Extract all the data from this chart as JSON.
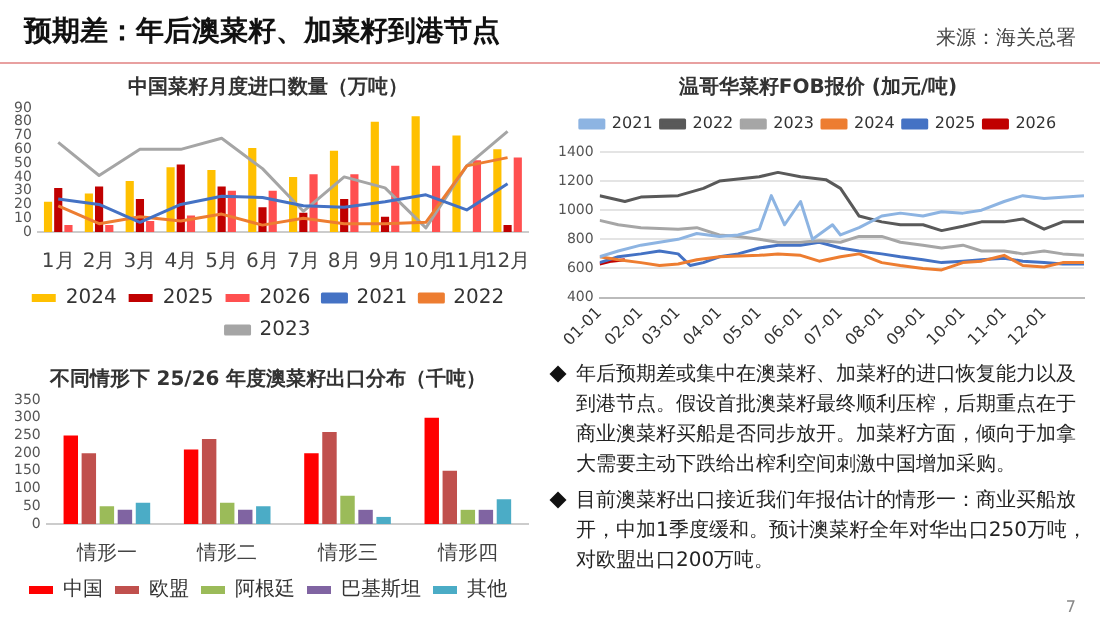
{
  "chart_data": [
    {
      "type": "other",
      "title": "预期差：年后澳菜籽、加菜籽到港节点",
      "annotations": [
        "来源：海关总署"
      ]
    },
    {
      "type": "bar",
      "title": "中国菜籽月度进口数量（万吨）",
      "categories": [
        "1月",
        "2月",
        "3月",
        "4月",
        "5月",
        "6月",
        "7月",
        "8月",
        "9月",
        "10月",
        "11月",
        "12月"
      ],
      "ylim": [
        0,
        90
      ],
      "yticks": [
        0,
        10,
        20,
        30,
        40,
        50,
        60,
        70,
        80,
        90
      ],
      "legend": "bottom",
      "series": [
        {
          "name": "2024",
          "color": "#ffc000",
          "values": [
            22,
            28,
            37,
            47,
            45,
            61,
            40,
            59,
            80,
            84,
            70,
            60
          ]
        },
        {
          "name": "2025",
          "color": "#c00000",
          "values": [
            32,
            33,
            24,
            49,
            33,
            18,
            14,
            24,
            11,
            null,
            null,
            5
          ]
        },
        {
          "name": "2026",
          "color": "#ff5050",
          "values": [
            5,
            5,
            8,
            12,
            30,
            30,
            42,
            42,
            48,
            48,
            52,
            54
          ]
        },
        {
          "name": "2021",
          "type": "line",
          "color": "#4472c4",
          "values": [
            24,
            20,
            7,
            20,
            26,
            25,
            19,
            18,
            22,
            27,
            16,
            35
          ]
        },
        {
          "name": "2022",
          "type": "line",
          "color": "#ed7d31",
          "values": [
            19,
            6,
            11,
            8,
            13,
            5,
            10,
            6,
            6,
            7,
            48,
            54
          ]
        },
        {
          "name": "2023",
          "type": "line",
          "color": "#a5a5a5",
          "values": [
            65,
            41,
            60,
            60,
            68,
            46,
            15,
            40,
            32,
            3,
            48,
            73
          ]
        }
      ]
    },
    {
      "type": "line",
      "title": "温哥华菜籽FOB报价 (加元/吨)",
      "xlim": [
        "--01-01",
        "--12-31"
      ],
      "xticks": [
        {
          "value": "--01-01",
          "label": "01-01"
        },
        {
          "value": "--02-01",
          "label": "02-01"
        },
        {
          "value": "--03-01",
          "label": "03-01"
        },
        {
          "value": "--04-01",
          "label": "04-01"
        },
        {
          "value": "--05-01",
          "label": "05-01"
        },
        {
          "value": "--06-01",
          "label": "06-01"
        },
        {
          "value": "--07-01",
          "label": "07-01"
        },
        {
          "value": "--08-01",
          "label": "08-01"
        },
        {
          "value": "--09-01",
          "label": "09-01"
        },
        {
          "value": "--10-01",
          "label": "10-01"
        },
        {
          "value": "--11-01",
          "label": "11-01"
        },
        {
          "value": "--12-01",
          "label": "12-01"
        }
      ],
      "ylim": [
        400,
        1400
      ],
      "yticks": [
        400,
        600,
        800,
        1000,
        1200,
        1400
      ],
      "grid": "y",
      "legend": "top",
      "series": [
        {
          "name": "2021",
          "color": "#8db4e2",
          "x": [
            "--01-01",
            "--01-15",
            "--02-01",
            "--03-01",
            "--03-15",
            "--04-01",
            "--04-15",
            "--05-01",
            "--05-10",
            "--05-20",
            "--06-01",
            "--06-10",
            "--06-25",
            "--07-01",
            "--07-15",
            "--08-01",
            "--08-15",
            "--09-01",
            "--09-15",
            "--10-01",
            "--10-15",
            "--11-01",
            "--11-15",
            "--12-01",
            "--12-31"
          ],
          "values": [
            680,
            720,
            760,
            800,
            840,
            820,
            830,
            870,
            1100,
            900,
            1060,
            800,
            900,
            830,
            880,
            960,
            980,
            960,
            990,
            980,
            1000,
            1060,
            1100,
            1080,
            1100
          ]
        },
        {
          "name": "2022",
          "color": "#595959",
          "x": [
            "--01-01",
            "--01-20",
            "--02-01",
            "--03-01",
            "--03-20",
            "--04-01",
            "--05-01",
            "--05-15",
            "--06-01",
            "--06-20",
            "--07-01",
            "--07-15",
            "--08-01",
            "--08-15",
            "--09-01",
            "--09-15",
            "--10-01",
            "--10-15",
            "--11-01",
            "--11-15",
            "--12-01",
            "--12-15",
            "--12-31"
          ],
          "values": [
            1100,
            1060,
            1090,
            1100,
            1150,
            1200,
            1230,
            1260,
            1230,
            1210,
            1150,
            960,
            920,
            900,
            900,
            860,
            890,
            920,
            920,
            940,
            870,
            920,
            920
          ]
        },
        {
          "name": "2023",
          "color": "#a6a6a6",
          "x": [
            "--01-01",
            "--01-15",
            "--02-01",
            "--03-01",
            "--03-15",
            "--04-01",
            "--04-15",
            "--05-01",
            "--05-15",
            "--06-01",
            "--06-15",
            "--07-01",
            "--07-15",
            "--08-01",
            "--08-15",
            "--09-01",
            "--09-15",
            "--10-01",
            "--10-15",
            "--11-01",
            "--11-15",
            "--12-01",
            "--12-15",
            "--12-31"
          ],
          "values": [
            930,
            900,
            880,
            870,
            880,
            830,
            820,
            800,
            780,
            780,
            790,
            780,
            820,
            820,
            780,
            760,
            740,
            760,
            720,
            720,
            700,
            720,
            700,
            690
          ]
        },
        {
          "name": "2024",
          "color": "#ed7d31",
          "x": [
            "--01-01",
            "--01-15",
            "--02-01",
            "--02-15",
            "--03-01",
            "--03-15",
            "--04-01",
            "--05-01",
            "--05-15",
            "--06-01",
            "--06-15",
            "--07-01",
            "--07-15",
            "--08-01",
            "--08-15",
            "--09-01",
            "--09-15",
            "--10-01",
            "--10-15",
            "--11-01",
            "--11-15",
            "--12-01",
            "--12-15",
            "--12-31"
          ],
          "values": [
            680,
            660,
            640,
            620,
            630,
            660,
            680,
            690,
            700,
            690,
            650,
            680,
            700,
            640,
            620,
            600,
            590,
            640,
            650,
            690,
            620,
            610,
            640,
            640
          ]
        },
        {
          "name": "2025",
          "color": "#4472c4",
          "x": [
            "--01-01",
            "--01-15",
            "--02-01",
            "--02-15",
            "--03-01",
            "--03-10",
            "--03-20",
            "--04-01",
            "--04-15",
            "--05-01",
            "--05-15",
            "--06-01",
            "--06-15",
            "--07-01",
            "--07-15",
            "--08-01",
            "--08-15",
            "--09-01",
            "--09-15",
            "--10-01",
            "--10-15",
            "--11-01",
            "--11-15",
            "--12-01",
            "--12-15",
            "--12-31"
          ],
          "values": [
            640,
            680,
            700,
            720,
            700,
            620,
            640,
            680,
            700,
            740,
            760,
            760,
            780,
            740,
            720,
            700,
            680,
            660,
            640,
            650,
            660,
            670,
            650,
            640,
            630,
            630
          ]
        },
        {
          "name": "2026",
          "color": "#c00000",
          "x": [
            "--01-01",
            "--01-10",
            "--01-20"
          ],
          "values": [
            630,
            650,
            660
          ]
        }
      ]
    },
    {
      "type": "bar",
      "title": "不同情形下 25/26 年度澳菜籽出口分布（千吨）",
      "categories": [
        "情形一",
        "情形二",
        "情形三",
        "情形四"
      ],
      "ylim": [
        0,
        350
      ],
      "yticks": [
        0,
        50,
        100,
        150,
        200,
        250,
        300,
        350
      ],
      "legend": "bottom",
      "series": [
        {
          "name": "中国",
          "color": "#ff0000",
          "values": [
            250,
            210,
            200,
            300
          ]
        },
        {
          "name": "欧盟",
          "color": "#c0504d",
          "values": [
            200,
            240,
            260,
            150
          ]
        },
        {
          "name": "阿根廷",
          "color": "#9bbb59",
          "values": [
            50,
            60,
            80,
            40
          ]
        },
        {
          "name": "巴基斯坦",
          "color": "#8064a2",
          "values": [
            40,
            40,
            40,
            40
          ]
        },
        {
          "name": "其他",
          "color": "#4bacc6",
          "values": [
            60,
            50,
            20,
            70
          ]
        }
      ]
    },
    {
      "type": "other",
      "annotations": [
        "年后预期差或集中在澳菜籽、加菜籽的进口恢复能力以及到港节点。假设首批澳菜籽最终顺利压榨，后期重点在于商业澳菜籽买船是否同步放开。加菜籽方面，倾向于加拿大需要主动下跌给出榨利空间刺激中国增加采购。",
        "目前澳菜籽出口接近我们年报估计的情形一：商业买船放开，中加1季度缓和。预计澳菜籽全年对华出口250万吨，对欧盟出口200万吨。",
        "7"
      ]
    }
  ]
}
